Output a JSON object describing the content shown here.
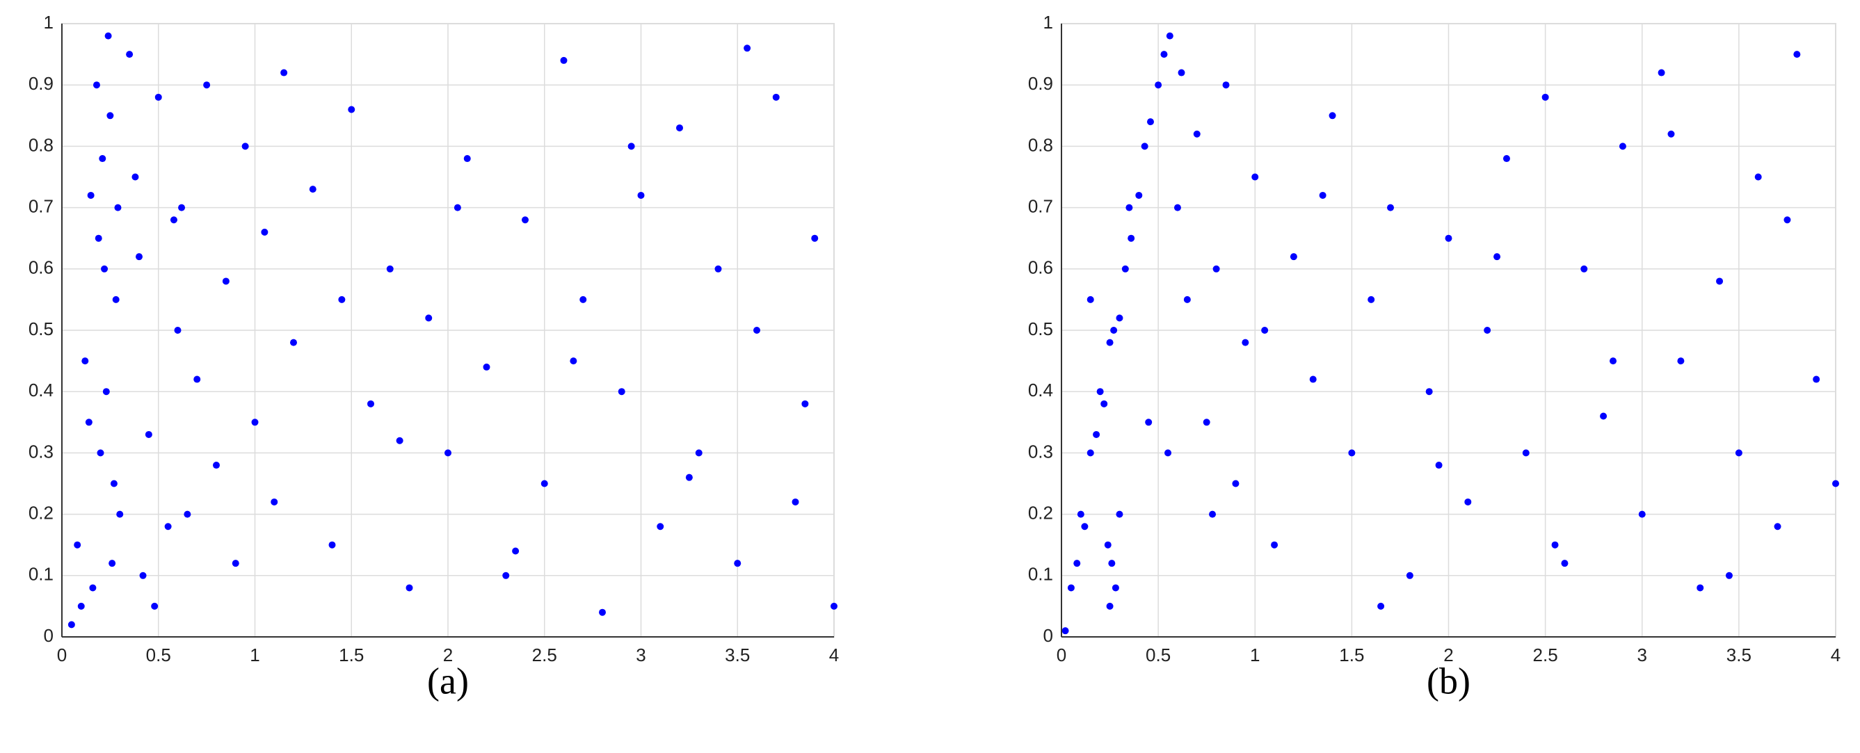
{
  "chart_data": [
    {
      "type": "scatter",
      "caption": "(a)",
      "color": "#0000ff",
      "grid": true,
      "xlim": [
        0,
        4
      ],
      "ylim": [
        0,
        1
      ],
      "xticks": [
        0,
        0.5,
        1,
        1.5,
        2,
        2.5,
        3,
        3.5,
        4
      ],
      "yticks": [
        0,
        0.1,
        0.2,
        0.3,
        0.4,
        0.5,
        0.6,
        0.7,
        0.8,
        0.9,
        1
      ],
      "x": [
        0.05,
        0.08,
        0.12,
        0.15,
        0.18,
        0.2,
        0.22,
        0.25,
        0.27,
        0.28,
        0.1,
        0.14,
        0.21,
        0.24,
        0.26,
        0.19,
        0.23,
        0.16,
        0.29,
        0.3,
        0.35,
        0.4,
        0.45,
        0.5,
        0.55,
        0.6,
        0.38,
        0.48,
        0.62,
        0.7,
        0.75,
        0.8,
        0.85,
        0.9,
        0.95,
        1.0,
        1.05,
        1.1,
        1.2,
        1.3,
        1.4,
        1.5,
        1.6,
        1.7,
        1.8,
        1.9,
        2.0,
        2.1,
        2.2,
        2.3,
        2.4,
        2.5,
        2.6,
        2.7,
        2.8,
        2.9,
        3.0,
        3.1,
        3.2,
        3.3,
        3.4,
        3.5,
        3.6,
        3.7,
        3.8,
        3.9,
        4.0,
        0.65,
        1.15,
        1.45,
        1.75,
        2.05,
        2.35,
        2.65,
        2.95,
        3.25,
        3.55,
        3.85,
        0.42,
        0.58
      ],
      "values": [
        0.02,
        0.15,
        0.45,
        0.72,
        0.9,
        0.3,
        0.6,
        0.85,
        0.25,
        0.55,
        0.05,
        0.35,
        0.78,
        0.98,
        0.12,
        0.65,
        0.4,
        0.08,
        0.7,
        0.2,
        0.95,
        0.62,
        0.33,
        0.88,
        0.18,
        0.5,
        0.75,
        0.05,
        0.7,
        0.42,
        0.9,
        0.28,
        0.58,
        0.12,
        0.8,
        0.35,
        0.66,
        0.22,
        0.48,
        0.73,
        0.15,
        0.86,
        0.38,
        0.6,
        0.08,
        0.52,
        0.3,
        0.78,
        0.44,
        0.1,
        0.68,
        0.25,
        0.94,
        0.55,
        0.04,
        0.4,
        0.72,
        0.18,
        0.83,
        0.3,
        0.6,
        0.12,
        0.5,
        0.88,
        0.22,
        0.65,
        0.05,
        0.2,
        0.92,
        0.55,
        0.32,
        0.7,
        0.14,
        0.45,
        0.8,
        0.26,
        0.96,
        0.38,
        0.1,
        0.68
      ]
    },
    {
      "type": "scatter",
      "caption": "(b)",
      "color": "#0000ff",
      "grid": true,
      "xlim": [
        0,
        4
      ],
      "ylim": [
        0,
        1
      ],
      "xticks": [
        0,
        0.5,
        1,
        1.5,
        2,
        2.5,
        3,
        3.5,
        4
      ],
      "yticks": [
        0,
        0.1,
        0.2,
        0.3,
        0.4,
        0.5,
        0.6,
        0.7,
        0.8,
        0.9,
        1
      ],
      "x": [
        0.02,
        0.05,
        0.08,
        0.1,
        0.12,
        0.15,
        0.18,
        0.2,
        0.22,
        0.25,
        0.27,
        0.3,
        0.33,
        0.36,
        0.4,
        0.43,
        0.46,
        0.5,
        0.53,
        0.56,
        0.25,
        0.26,
        0.28,
        0.24,
        0.3,
        0.6,
        0.65,
        0.7,
        0.75,
        0.8,
        0.85,
        0.9,
        0.95,
        1.0,
        1.1,
        1.2,
        1.3,
        1.4,
        1.5,
        1.6,
        1.7,
        1.8,
        1.9,
        2.0,
        2.1,
        2.2,
        2.3,
        2.4,
        2.5,
        2.6,
        2.7,
        2.8,
        2.9,
        3.0,
        3.1,
        3.2,
        3.3,
        3.4,
        3.5,
        3.6,
        3.7,
        3.8,
        3.9,
        4.0,
        0.45,
        0.62,
        0.78,
        1.05,
        1.35,
        1.65,
        1.95,
        2.25,
        2.55,
        2.85,
        3.15,
        3.45,
        3.75,
        0.15,
        0.35,
        0.55
      ],
      "values": [
        0.01,
        0.08,
        0.12,
        0.2,
        0.18,
        0.3,
        0.33,
        0.4,
        0.38,
        0.48,
        0.5,
        0.52,
        0.6,
        0.65,
        0.72,
        0.8,
        0.84,
        0.9,
        0.95,
        0.98,
        0.05,
        0.12,
        0.08,
        0.15,
        0.2,
        0.7,
        0.55,
        0.82,
        0.35,
        0.6,
        0.9,
        0.25,
        0.48,
        0.75,
        0.15,
        0.62,
        0.42,
        0.85,
        0.3,
        0.55,
        0.7,
        0.1,
        0.4,
        0.65,
        0.22,
        0.5,
        0.78,
        0.3,
        0.88,
        0.12,
        0.6,
        0.36,
        0.8,
        0.2,
        0.92,
        0.45,
        0.08,
        0.58,
        0.3,
        0.75,
        0.18,
        0.95,
        0.42,
        0.25,
        0.35,
        0.92,
        0.2,
        0.5,
        0.72,
        0.05,
        0.28,
        0.62,
        0.15,
        0.45,
        0.82,
        0.1,
        0.68,
        0.55,
        0.7,
        0.3
      ]
    }
  ]
}
